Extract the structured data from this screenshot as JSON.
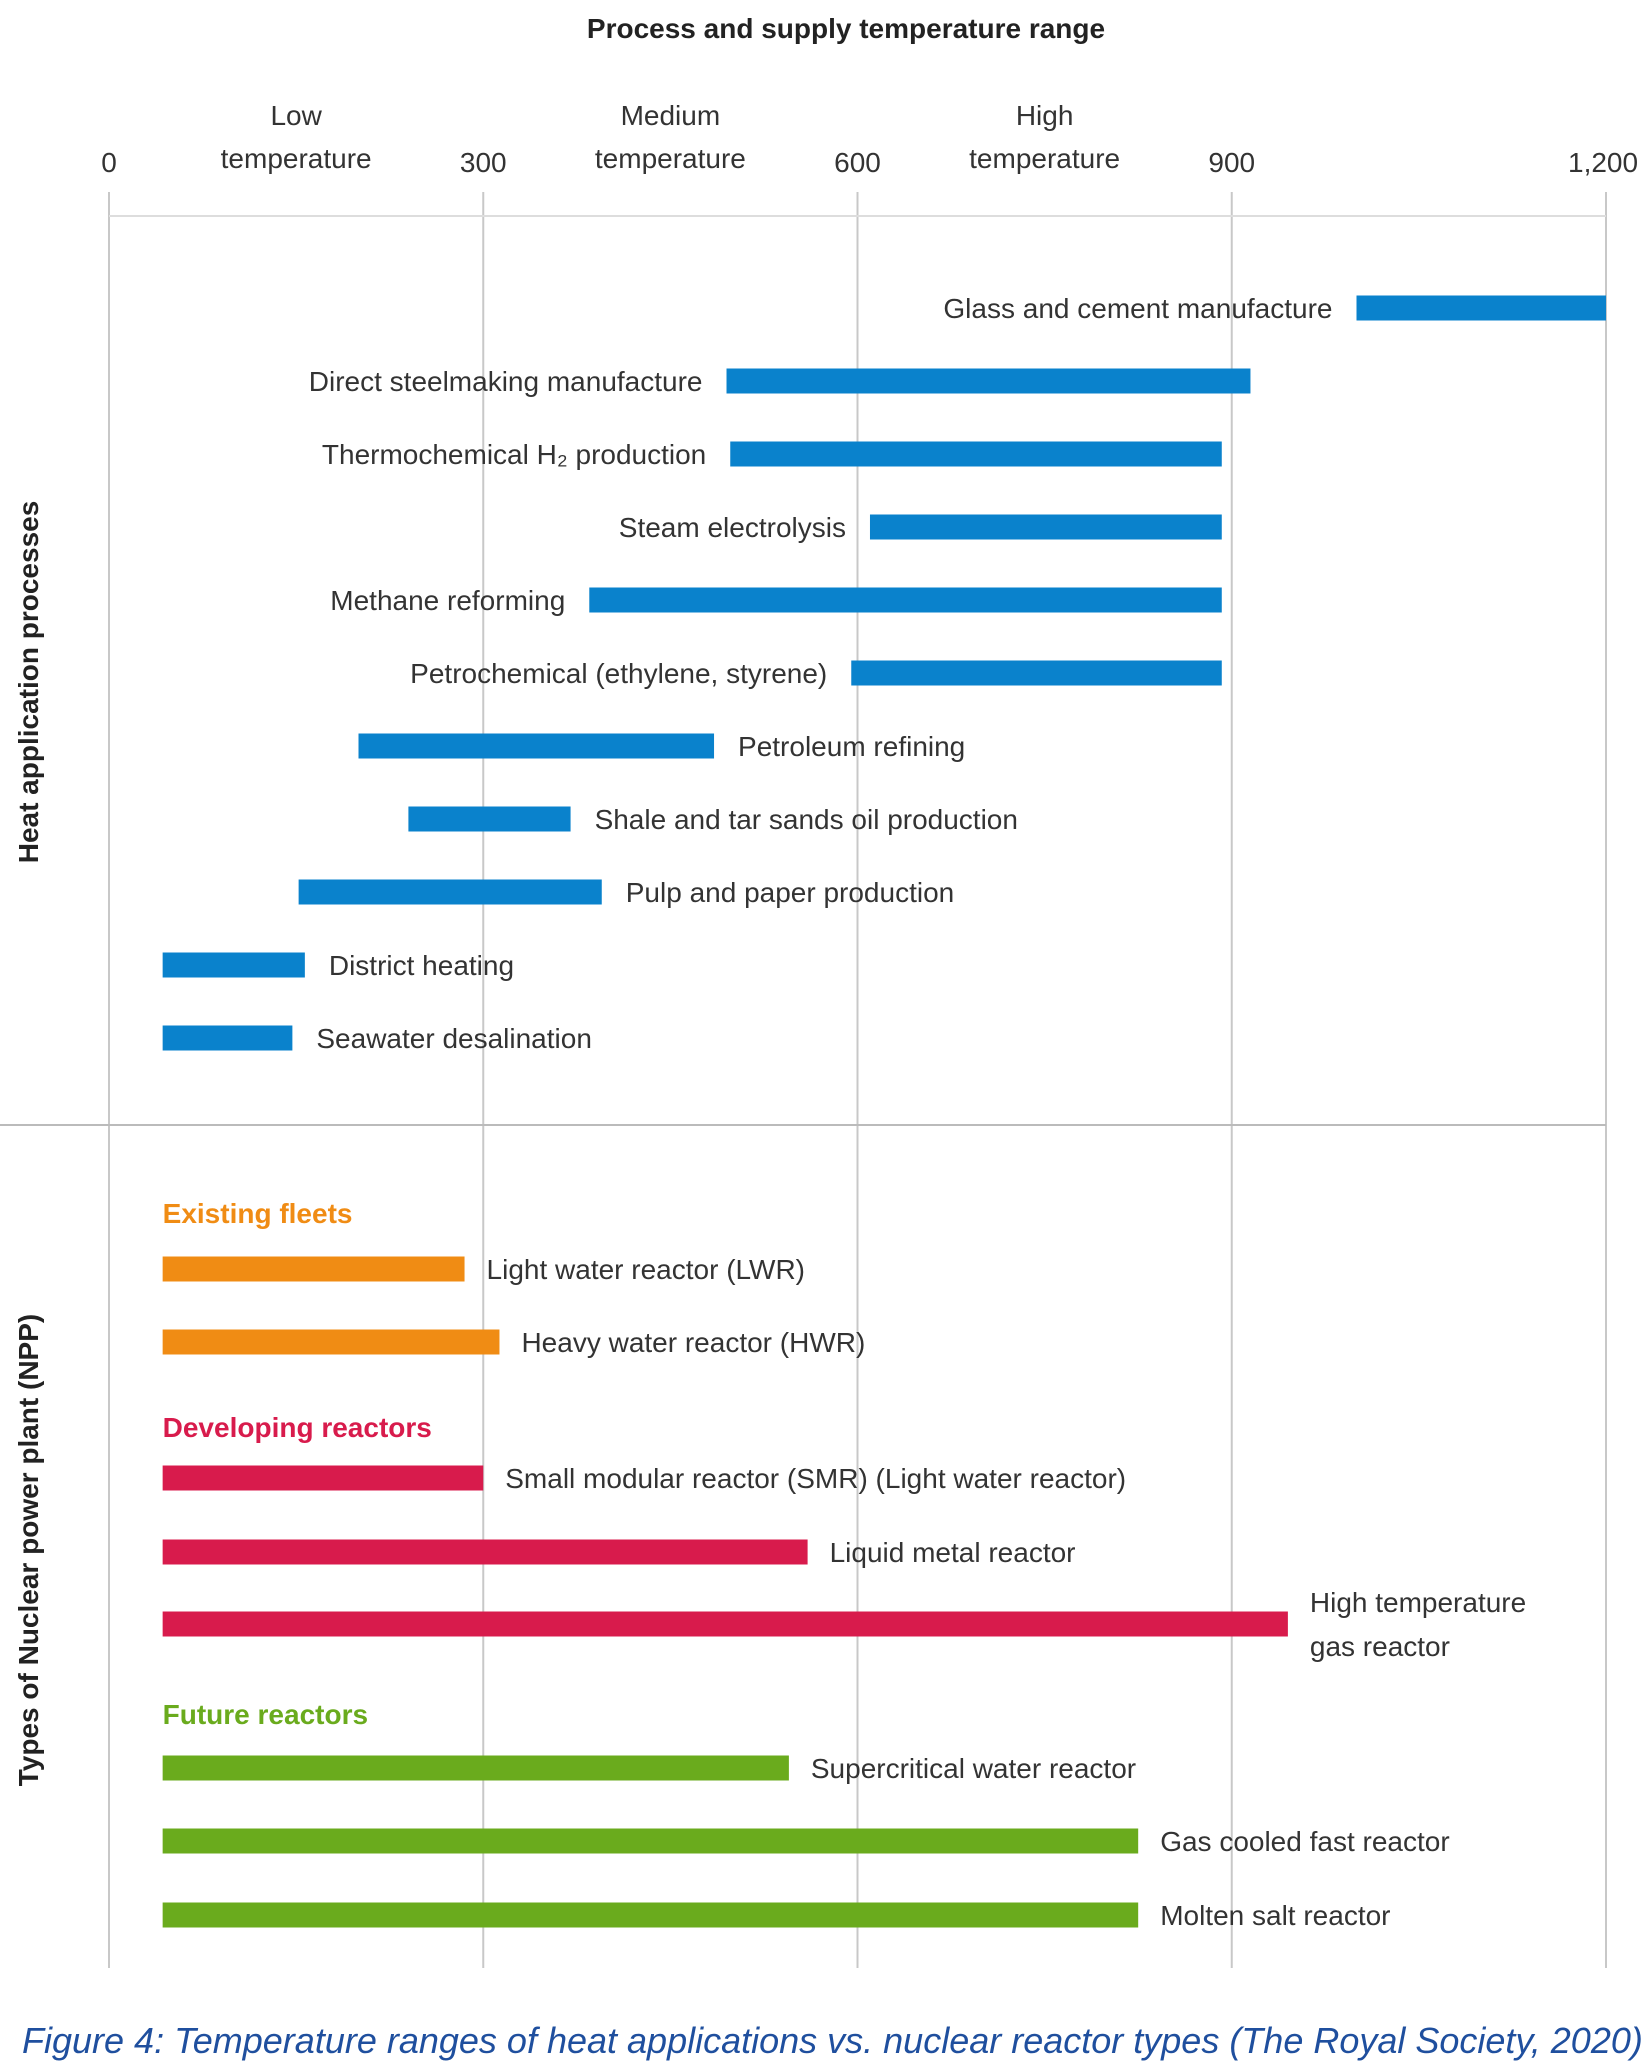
{
  "chart_data": {
    "type": "bar",
    "orientation": "horizontal-range",
    "title": "Process and supply temperature range",
    "xlim": [
      0,
      1200
    ],
    "ticks": [
      "0",
      "300",
      "600",
      "900",
      "1,200"
    ],
    "tick_values": [
      0,
      300,
      600,
      900,
      1200
    ],
    "bands": [
      {
        "line1": "Low",
        "line2": "temperature",
        "center": 150
      },
      {
        "line1": "Medium",
        "line2": "temperature",
        "center": 450
      },
      {
        "line1": "High",
        "line2": "temperature",
        "center": 750
      }
    ],
    "grid": "vertical",
    "sections": [
      {
        "title": "Heat application processes",
        "color": "#0a82cc",
        "items": [
          {
            "label": "Glass and cement manufacture",
            "start": 1000,
            "end": 1200,
            "label_side": "left"
          },
          {
            "label": "Direct steelmaking manufacture",
            "start": 495,
            "end": 915,
            "label_side": "left"
          },
          {
            "label": "Thermochemical H₂ production",
            "start": 498,
            "end": 892,
            "label_side": "left"
          },
          {
            "label": "Steam electrolysis",
            "start": 610,
            "end": 892,
            "label_side": "left"
          },
          {
            "label": "Methane reforming",
            "start": 385,
            "end": 892,
            "label_side": "left"
          },
          {
            "label": "Petrochemical (ethylene, styrene)",
            "start": 595,
            "end": 892,
            "label_side": "left"
          },
          {
            "label": "Petroleum refining",
            "start": 200,
            "end": 485,
            "label_side": "right"
          },
          {
            "label": "Shale and tar sands oil production",
            "start": 240,
            "end": 370,
            "label_side": "right"
          },
          {
            "label": "Pulp and paper production",
            "start": 152,
            "end": 395,
            "label_side": "right"
          },
          {
            "label": "District heating",
            "start": 43,
            "end": 157,
            "label_side": "right"
          },
          {
            "label": "Seawater desalination",
            "start": 43,
            "end": 147,
            "label_side": "right"
          }
        ]
      },
      {
        "title": "Types of Nuclear power plant (NPP)",
        "groups": [
          {
            "name": "Existing fleets",
            "color": "#f08c14",
            "items": [
              {
                "label": "Light water reactor (LWR)",
                "start": 43,
                "end": 285
              },
              {
                "label": "Heavy water reactor (HWR)",
                "start": 43,
                "end": 313
              }
            ]
          },
          {
            "name": "Developing reactors",
            "color": "#d81b4c",
            "items": [
              {
                "label": "Small modular reactor (SMR) (Light water reactor)",
                "start": 43,
                "end": 300
              },
              {
                "label": "Liquid metal reactor",
                "start": 43,
                "end": 560
              },
              {
                "label": "High temperature\ngas reactor",
                "start": 43,
                "end": 945
              }
            ]
          },
          {
            "name": "Future reactors",
            "color": "#6aab1d",
            "items": [
              {
                "label": "Supercritical water reactor",
                "start": 43,
                "end": 545
              },
              {
                "label": "Gas cooled fast reactor",
                "start": 43,
                "end": 825
              },
              {
                "label": "Molten salt reactor",
                "start": 43,
                "end": 825
              }
            ]
          }
        ]
      }
    ]
  },
  "caption": "Figure 4: Temperature ranges of heat applications vs. nuclear reactor types (The Royal Society, 2020)"
}
